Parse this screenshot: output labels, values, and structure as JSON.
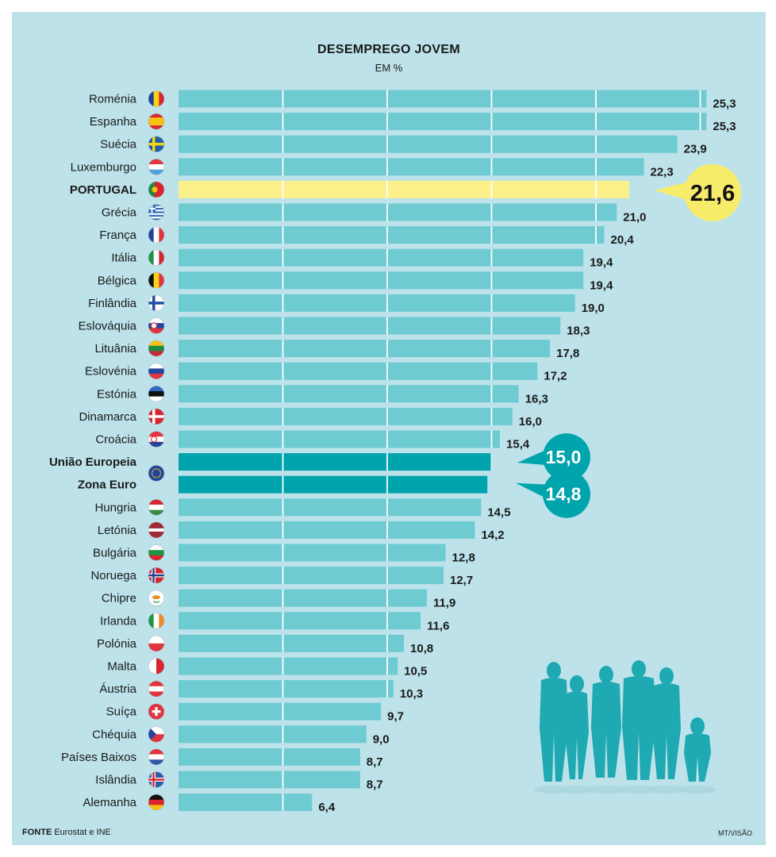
{
  "header": {
    "title": "DESEMPREGO JOVEM",
    "subtitle": "EM %"
  },
  "footer": {
    "source_label": "FONTE",
    "source_text": "Eurostat e INE",
    "credit": "MT/VISÃO"
  },
  "colors": {
    "background": "#bde2ea",
    "bar": "#6fcbd2",
    "highlight": "#fbf08a",
    "aggregate": "#00a4ad",
    "bubble_yellow": "#f7ec6a",
    "bubble_teal": "#00a4ad",
    "silhouette": "#1fa9b2"
  },
  "chart_data": {
    "type": "bar",
    "orientation": "horizontal",
    "title": "DESEMPREGO JOVEM",
    "subtitle": "EM %",
    "xlim": [
      0,
      26
    ],
    "grid": true,
    "categories": [
      "Roménia",
      "Espanha",
      "Suécia",
      "Luxemburgo",
      "PORTUGAL",
      "Grécia",
      "França",
      "Itália",
      "Bélgica",
      "Finlândia",
      "Eslováquia",
      "Lituânia",
      "Eslovénia",
      "Estónia",
      "Dinamarca",
      "Croácia",
      "União Europeia",
      "Zona Euro",
      "Hungria",
      "Letónia",
      "Bulgária",
      "Noruega",
      "Chipre",
      "Irlanda",
      "Polónia",
      "Malta",
      "Áustria",
      "Suíça",
      "Chéquia",
      "Países Baixos",
      "Islândia",
      "Alemanha"
    ],
    "values": [
      25.3,
      25.3,
      23.9,
      22.3,
      21.6,
      21.0,
      20.4,
      19.4,
      19.4,
      19.0,
      18.3,
      17.8,
      17.2,
      16.3,
      16.0,
      15.4,
      15.0,
      14.8,
      14.5,
      14.2,
      12.8,
      12.7,
      11.9,
      11.6,
      10.8,
      10.5,
      10.3,
      9.7,
      9.0,
      8.7,
      8.7,
      6.4
    ],
    "value_labels": [
      "25,3",
      "25,3",
      "23,9",
      "22,3",
      "21,6",
      "21,0",
      "20,4",
      "19,4",
      "19,4",
      "19,0",
      "18,3",
      "17,8",
      "17,2",
      "16,3",
      "16,0",
      "15,4",
      "15,0",
      "14,8",
      "14,5",
      "14,2",
      "12,8",
      "12,7",
      "11,9",
      "11,6",
      "10,8",
      "10,5",
      "10,3",
      "9,7",
      "9,0",
      "8,7",
      "8,7",
      "6,4"
    ],
    "highlight": {
      "PORTUGAL": "yellow",
      "União Europeia": "teal",
      "Zona Euro": "teal"
    },
    "bold_categories": [
      "PORTUGAL",
      "União Europeia",
      "Zona Euro"
    ],
    "flag_icons": [
      "flag-romania-icon",
      "flag-spain-icon",
      "flag-sweden-icon",
      "flag-luxembourg-icon",
      "flag-portugal-icon",
      "flag-greece-icon",
      "flag-france-icon",
      "flag-italy-icon",
      "flag-belgium-icon",
      "flag-finland-icon",
      "flag-slovakia-icon",
      "flag-lithuania-icon",
      "flag-slovenia-icon",
      "flag-estonia-icon",
      "flag-denmark-icon",
      "flag-croatia-icon",
      "flag-eu-icon",
      "",
      "flag-hungary-icon",
      "flag-latvia-icon",
      "flag-bulgaria-icon",
      "flag-norway-icon",
      "flag-cyprus-icon",
      "flag-ireland-icon",
      "flag-poland-icon",
      "flag-malta-icon",
      "flag-austria-icon",
      "flag-switzerland-icon",
      "flag-czechia-icon",
      "flag-netherlands-icon",
      "flag-iceland-icon",
      "flag-germany-icon"
    ]
  }
}
